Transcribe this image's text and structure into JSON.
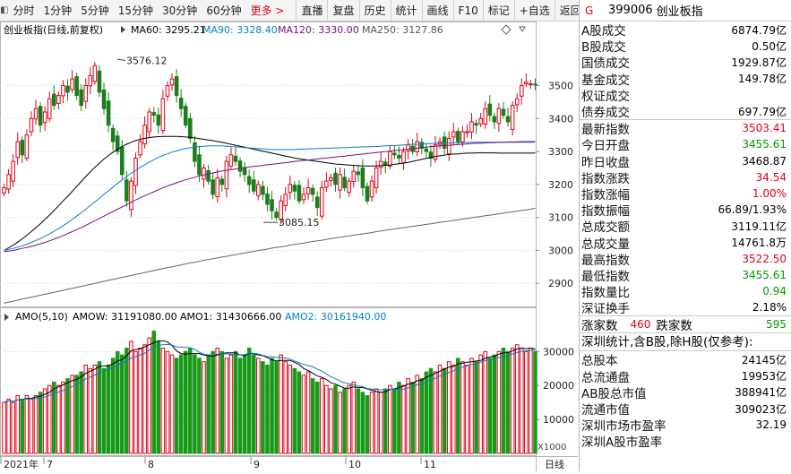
{
  "toolbar": {
    "items": [
      "分时",
      "1分钟",
      "5分钟",
      "15分钟",
      "30分钟",
      "60分钟",
      "更多 >"
    ],
    "tools": [
      "直播",
      "复盘",
      "历史",
      "统计",
      "画线",
      "F10",
      "标记",
      "+自选",
      "返回"
    ]
  },
  "main_chart": {
    "title": "创业板指(日线,前复权)",
    "ma": [
      {
        "label": "MA60: 3295.21",
        "color": "#000000"
      },
      {
        "label": "MA90: 3328.40",
        "color": "#0a7fc4"
      },
      {
        "label": "MA120: 3330.00",
        "color": "#7b0f7b"
      },
      {
        "label": "MA250: 3127.86",
        "color": "#555555"
      }
    ],
    "high_label": "3576.12",
    "low_label": "3085.15",
    "y_ticks": [
      "3500",
      "3400",
      "3300",
      "3200",
      "3100",
      "3000",
      "2900"
    ]
  },
  "volume_chart": {
    "legend": [
      {
        "label": "AMO(5,10)",
        "color": "#000000"
      },
      {
        "label": "AMOW: 31191080.00",
        "color": "#000000"
      },
      {
        "label": "AMO1: 31430666.00",
        "color": "#000000"
      },
      {
        "label": "AMO2: 30161940.00",
        "color": "#0a7fc4"
      }
    ],
    "y_ticks": [
      "30000",
      "20000",
      "10000"
    ],
    "unit": "X1000"
  },
  "x_axis": {
    "labels": [
      "2021年",
      "7",
      "8",
      "9",
      "10",
      "11"
    ],
    "period_label": "日线"
  },
  "chart_data": {
    "type": "candlestick",
    "title": "创业板指(日线,前复权)",
    "ylim": [
      2830,
      3640
    ],
    "closes": [
      3190,
      3230,
      3270,
      3330,
      3290,
      3350,
      3400,
      3430,
      3380,
      3420,
      3460,
      3440,
      3470,
      3500,
      3480,
      3520,
      3470,
      3440,
      3500,
      3530,
      3560,
      3480,
      3430,
      3380,
      3330,
      3300,
      3230,
      3150,
      3210,
      3280,
      3330,
      3380,
      3420,
      3410,
      3380,
      3460,
      3500,
      3520,
      3470,
      3430,
      3380,
      3340,
      3270,
      3230,
      3250,
      3210,
      3170,
      3220,
      3200,
      3270,
      3290,
      3270,
      3240,
      3230,
      3200,
      3180,
      3200,
      3170,
      3140,
      3120,
      3100,
      3150,
      3170,
      3200,
      3180,
      3150,
      3170,
      3190,
      3170,
      3130,
      3190,
      3210,
      3220,
      3200,
      3230,
      3190,
      3210,
      3240,
      3230,
      3190,
      3150,
      3210,
      3250,
      3270,
      3260,
      3300,
      3290,
      3280,
      3300,
      3320,
      3300,
      3330,
      3310,
      3300,
      3280,
      3320,
      3330,
      3310,
      3340,
      3360,
      3330,
      3360,
      3360,
      3390,
      3380,
      3400,
      3430,
      3410,
      3390,
      3430,
      3410,
      3390,
      3440,
      3460,
      3500,
      3510,
      3505,
      3503.41
    ],
    "volumes": [
      15000,
      16000,
      15000,
      17000,
      16000,
      17000,
      16000,
      17000,
      18000,
      19000,
      20000,
      21000,
      20000,
      21000,
      22000,
      23000,
      23000,
      24000,
      26000,
      25000,
      26000,
      27000,
      25000,
      26000,
      28000,
      30000,
      29000,
      31000,
      33000,
      30000,
      31000,
      32000,
      34000,
      36000,
      33000,
      31000,
      30000,
      29000,
      28000,
      29000,
      30000,
      31000,
      29000,
      28000,
      27000,
      29000,
      30000,
      31000,
      30000,
      28000,
      29000,
      30000,
      28000,
      29000,
      31000,
      29000,
      28000,
      27000,
      26000,
      28000,
      27000,
      29000,
      27000,
      26000,
      25000,
      24000,
      23000,
      24000,
      22000,
      21000,
      22000,
      20000,
      19000,
      20000,
      18000,
      19000,
      20000,
      21000,
      19000,
      18000,
      17000,
      18000,
      19000,
      18000,
      19000,
      20000,
      19000,
      21000,
      20000,
      22000,
      21000,
      23000,
      22000,
      24000,
      25000,
      24000,
      26000,
      25000,
      27000,
      26000,
      28000,
      27000,
      26000,
      28000,
      27000,
      29000,
      30000,
      28000,
      29000,
      30000,
      31000,
      30000,
      31000,
      32000,
      31000,
      30000,
      31000,
      30000
    ],
    "ma60": [
      3000,
      3008,
      3016,
      3025,
      3035,
      3046,
      3057,
      3069,
      3081,
      3094,
      3107,
      3121,
      3135,
      3150,
      3164,
      3179,
      3194,
      3209,
      3224,
      3238,
      3252,
      3265,
      3277,
      3288,
      3298,
      3307,
      3315,
      3322,
      3328,
      3333,
      3337,
      3340,
      3342,
      3344,
      3345,
      3346,
      3346,
      3346,
      3346,
      3345,
      3344,
      3343,
      3341,
      3339,
      3337,
      3335,
      3333,
      3330,
      3328,
      3325,
      3322,
      3319,
      3316,
      3313,
      3310,
      3307,
      3304,
      3301,
      3298,
      3295,
      3292,
      3289,
      3286,
      3283,
      3280,
      3278,
      3276,
      3274,
      3272,
      3270,
      3268,
      3266,
      3264,
      3262,
      3261,
      3260,
      3259,
      3258,
      3257,
      3256,
      3256,
      3256,
      3256,
      3257,
      3258,
      3259,
      3261,
      3263,
      3265,
      3267,
      3270,
      3273,
      3276,
      3279,
      3282,
      3285,
      3287,
      3289,
      3291,
      3292,
      3293,
      3294,
      3295,
      3295,
      3296,
      3296,
      3296,
      3296,
      3296,
      3295,
      3295,
      3295,
      3295,
      3295,
      3295,
      3295,
      3295,
      3295.21
    ],
    "ma90": [
      3000,
      3003,
      3006,
      3010,
      3014,
      3019,
      3024,
      3030,
      3036,
      3043,
      3050,
      3058,
      3066,
      3075,
      3084,
      3094,
      3104,
      3114,
      3125,
      3136,
      3147,
      3158,
      3170,
      3181,
      3192,
      3203,
      3214,
      3224,
      3234,
      3243,
      3252,
      3260,
      3268,
      3275,
      3282,
      3288,
      3293,
      3298,
      3302,
      3306,
      3309,
      3311,
      3313,
      3315,
      3316,
      3317,
      3317,
      3317,
      3317,
      3316,
      3315,
      3314,
      3313,
      3312,
      3311,
      3310,
      3309,
      3308,
      3307,
      3306,
      3306,
      3306,
      3306,
      3306,
      3306,
      3307,
      3307,
      3308,
      3308,
      3309,
      3309,
      3310,
      3310,
      3311,
      3311,
      3312,
      3312,
      3313,
      3313,
      3314,
      3314,
      3315,
      3315,
      3316,
      3317,
      3318,
      3318,
      3319,
      3320,
      3321,
      3322,
      3322,
      3323,
      3324,
      3324,
      3325,
      3325,
      3326,
      3326,
      3327,
      3327,
      3327,
      3328,
      3328,
      3328,
      3328,
      3328,
      3328,
      3328,
      3328,
      3328,
      3328,
      3328,
      3328,
      3328,
      3328,
      3328,
      3328.4
    ],
    "ma120": [
      2996,
      2998,
      3000,
      3003,
      3006,
      3009,
      3012,
      3016,
      3020,
      3024,
      3029,
      3034,
      3039,
      3045,
      3051,
      3057,
      3063,
      3069,
      3076,
      3083,
      3090,
      3097,
      3104,
      3111,
      3118,
      3125,
      3132,
      3139,
      3146,
      3153,
      3160,
      3166,
      3172,
      3178,
      3184,
      3190,
      3195,
      3200,
      3205,
      3210,
      3214,
      3218,
      3222,
      3226,
      3229,
      3232,
      3235,
      3238,
      3241,
      3243,
      3245,
      3247,
      3249,
      3251,
      3253,
      3255,
      3256,
      3258,
      3260,
      3261,
      3263,
      3265,
      3266,
      3268,
      3270,
      3271,
      3273,
      3274,
      3276,
      3277,
      3279,
      3280,
      3282,
      3283,
      3285,
      3286,
      3288,
      3289,
      3291,
      3292,
      3294,
      3295,
      3297,
      3298,
      3300,
      3301,
      3303,
      3304,
      3306,
      3307,
      3309,
      3310,
      3312,
      3313,
      3315,
      3316,
      3317,
      3318,
      3319,
      3320,
      3321,
      3322,
      3323,
      3324,
      3325,
      3325,
      3326,
      3327,
      3327,
      3328,
      3328,
      3329,
      3329,
      3329,
      3330,
      3330,
      3330,
      3330.0
    ],
    "ma250": [
      2840,
      2843,
      2846,
      2849,
      2852,
      2855,
      2858,
      2861,
      2864,
      2867,
      2870,
      2873,
      2876,
      2879,
      2882,
      2885,
      2888,
      2891,
      2894,
      2897,
      2900,
      2903,
      2906,
      2909,
      2912,
      2915,
      2918,
      2921,
      2924,
      2927,
      2930,
      2933,
      2936,
      2939,
      2942,
      2945,
      2948,
      2950,
      2953,
      2956,
      2959,
      2962,
      2964,
      2967,
      2970,
      2972,
      2975,
      2977,
      2980,
      2982,
      2985,
      2987,
      2990,
      2992,
      2995,
      2997,
      3000,
      3002,
      3004,
      3007,
      3009,
      3011,
      3013,
      3016,
      3018,
      3020,
      3022,
      3025,
      3027,
      3029,
      3031,
      3033,
      3036,
      3038,
      3040,
      3042,
      3044,
      3046,
      3048,
      3050,
      3052,
      3054,
      3057,
      3059,
      3061,
      3063,
      3065,
      3067,
      3069,
      3071,
      3073,
      3075,
      3077,
      3079,
      3081,
      3083,
      3085,
      3087,
      3089,
      3091,
      3093,
      3095,
      3097,
      3099,
      3101,
      3103,
      3105,
      3107,
      3109,
      3111,
      3113,
      3115,
      3117,
      3119,
      3121,
      3123,
      3125,
      3127.86
    ]
  },
  "panel": {
    "g_label": "G",
    "code": "399006",
    "name": "创业板指",
    "rows_a": [
      {
        "label": "A股成交",
        "value": "6874.79亿",
        "cls": ""
      },
      {
        "label": "B股成交",
        "value": "0.50亿",
        "cls": ""
      },
      {
        "label": "国债成交",
        "value": "1929.87亿",
        "cls": ""
      },
      {
        "label": "基金成交",
        "value": "149.78亿",
        "cls": ""
      },
      {
        "label": "权证成交",
        "value": "",
        "cls": ""
      },
      {
        "label": "债券成交",
        "value": "697.79亿",
        "cls": ""
      }
    ],
    "rows_b": [
      {
        "label": "最新指数",
        "value": "3503.41",
        "cls": "red"
      },
      {
        "label": "今日开盘",
        "value": "3455.61",
        "cls": "green"
      },
      {
        "label": "昨日收盘",
        "value": "3468.87",
        "cls": ""
      },
      {
        "label": "指数涨跌",
        "value": "34.54",
        "cls": "red"
      },
      {
        "label": "指数涨幅",
        "value": "1.00%",
        "cls": "red"
      },
      {
        "label": "指数振幅",
        "value": "66.89/1.93%",
        "cls": ""
      },
      {
        "label": "总成交额",
        "value": "3119.11亿",
        "cls": ""
      },
      {
        "label": "总成交量",
        "value": "14761.8万",
        "cls": ""
      },
      {
        "label": "最高指数",
        "value": "3522.50",
        "cls": "red"
      },
      {
        "label": "最低指数",
        "value": "3455.61",
        "cls": "green"
      },
      {
        "label": "指数量比",
        "value": "0.94",
        "cls": "green"
      },
      {
        "label": "深证换手",
        "value": "2.18%",
        "cls": ""
      }
    ],
    "updown": {
      "up_label": "涨家数",
      "up_value": "460",
      "down_label": "跌家数",
      "down_value": "595"
    },
    "note": "深圳统计,含B股,除H股(仅参考):",
    "rows_c": [
      {
        "label": "总股本",
        "value": "24145亿",
        "cls": ""
      },
      {
        "label": "总流通盘",
        "value": "19953亿",
        "cls": ""
      },
      {
        "label": "AB股总市值",
        "value": "388941亿",
        "cls": ""
      },
      {
        "label": "流通市值",
        "value": "309023亿",
        "cls": ""
      },
      {
        "label": "深圳市场市盈率",
        "value": "32.19",
        "cls": ""
      },
      {
        "label": "深圳A股市盈率",
        "value": "",
        "cls": ""
      }
    ]
  }
}
